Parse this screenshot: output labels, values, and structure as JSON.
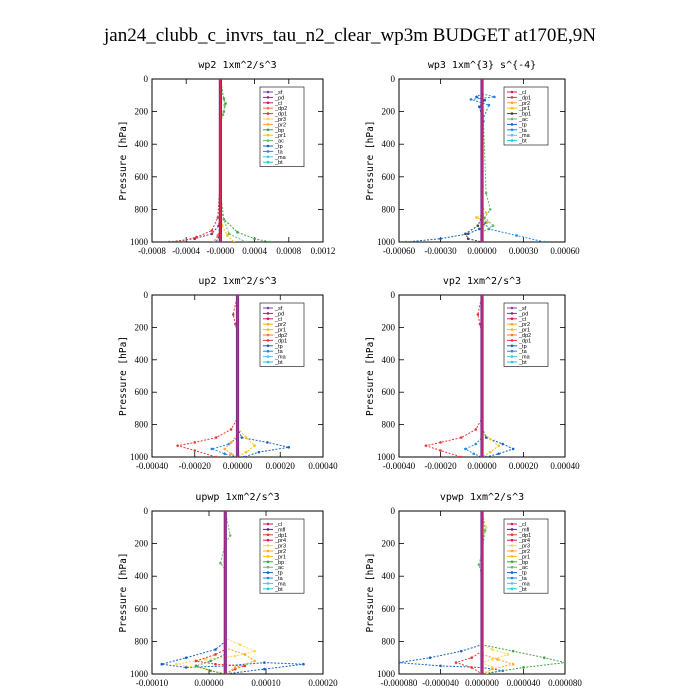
{
  "title": "jan24_clubb_c_invrs_tau_n2_clear_wp3m  BUDGET at170E,9N",
  "colors": {
    "sf": "#7f3fbf",
    "pd": "#9b2a6b",
    "cl": "#d81b60",
    "dp1": "#e53935",
    "dp2": "#ff7043",
    "pr1": "#ffc107",
    "pr2": "#ffa726",
    "pr3": "#ffd54f",
    "pr4": "#d81b60",
    "mfl": "#6a1b9a",
    "bp": "#43a047",
    "ac": "#66bb6a",
    "tp": "#1565c0",
    "ta": "#1e88e5",
    "ma": "#4fc3f7",
    "bt": "#26c6da"
  },
  "chart_data": [
    {
      "type": "line",
      "title": "wp2   1xm^2/s^3",
      "ylabel": "Pressure [hPa]",
      "ylim": [
        1000,
        0
      ],
      "xlim": [
        -0.0008,
        0.0012
      ],
      "xticks": [
        "-0.0008",
        "-0.0004",
        "-0.0000",
        "0.0004",
        "0.0008",
        "0.0012"
      ],
      "yticks": [
        "0",
        "200",
        "400",
        "600",
        "800",
        "1000"
      ],
      "legend": [
        "_sf",
        "_pd",
        "_cl",
        "_dp2",
        "_dp1",
        "_pr3",
        "_pr2",
        "_bp",
        "_pr1",
        "_ac",
        "_tp",
        "_ta",
        "_ma",
        "_bt"
      ],
      "series": [
        {
          "name": "_pd",
          "x": [
            0,
            0,
            0,
            -2e-05,
            -0.0001,
            -0.0003,
            -0.0006
          ],
          "y": [
            0,
            400,
            800,
            900,
            950,
            980,
            1000
          ]
        },
        {
          "name": "_dp1",
          "x": [
            0,
            0,
            -3e-05,
            -0.0001,
            -0.00028,
            -0.0005
          ],
          "y": [
            0,
            600,
            850,
            930,
            970,
            1000
          ]
        },
        {
          "name": "_bp",
          "x": [
            0,
            4e-05,
            6e-05,
            4e-05,
            0,
            0,
            4e-05,
            0.0002,
            0.0004,
            0.00058
          ],
          "y": [
            0,
            120,
            150,
            200,
            240,
            700,
            860,
            940,
            980,
            1000
          ]
        },
        {
          "name": "_ac",
          "x": [
            0,
            5e-05,
            3e-05,
            0,
            0,
            0.0001,
            0.0003
          ],
          "y": [
            0,
            160,
            220,
            260,
            800,
            950,
            1000
          ]
        },
        {
          "name": "_pr1",
          "x": [
            0,
            0,
            2e-05,
            8e-05,
            0.00016
          ],
          "y": [
            0,
            800,
            900,
            960,
            1000
          ]
        },
        {
          "name": "_tp",
          "x": [
            0,
            0,
            -2e-05,
            -5e-05
          ],
          "y": [
            0,
            900,
            970,
            1000
          ]
        },
        {
          "name": "_dp2",
          "x": [
            0,
            0,
            -3e-05,
            -8e-05
          ],
          "y": [
            0,
            900,
            960,
            1000
          ]
        }
      ]
    },
    {
      "type": "line",
      "title": "wp3   1xm^{3} s^{-4}",
      "ylabel": "Pressure [hPa]",
      "ylim": [
        1000,
        0
      ],
      "xlim": [
        -0.0006,
        0.0006
      ],
      "xticks": [
        "-0.00060",
        "-0.00030",
        "0.00000",
        "0.00030",
        "0.00060"
      ],
      "yticks": [
        "0",
        "200",
        "400",
        "600",
        "800",
        "1000"
      ],
      "legend": [
        "_cl",
        "_dp1",
        "_pr2",
        "_pr1",
        "_bp1",
        "_ac",
        "_tp",
        "_ta",
        "_ma",
        "_bt"
      ],
      "series": [
        {
          "name": "_tp",
          "x": [
            0,
            0,
            -4e-05,
            2e-05,
            -2e-05,
            1e-05,
            0,
            0,
            3e-05,
            -2e-05,
            -0.0001,
            -0.0003,
            -0.00055
          ],
          "y": [
            0,
            90,
            110,
            130,
            170,
            260,
            400,
            820,
            880,
            920,
            950,
            980,
            1000
          ]
        },
        {
          "name": "_ta",
          "x": [
            0,
            9e-05,
            -8e-05,
            5e-05,
            0,
            0,
            5e-05,
            0.00025,
            0.00045
          ],
          "y": [
            90,
            110,
            125,
            160,
            260,
            860,
            920,
            960,
            1000
          ]
        },
        {
          "name": "_pr1",
          "x": [
            0,
            0,
            3e-05,
            -4e-05,
            4e-05,
            0
          ],
          "y": [
            0,
            780,
            820,
            850,
            880,
            920
          ]
        },
        {
          "name": "_ac",
          "x": [
            0,
            3e-05,
            6e-05,
            2e-05,
            8e-05,
            0
          ],
          "y": [
            0,
            700,
            800,
            850,
            900,
            940
          ]
        },
        {
          "name": "_bp1",
          "x": [
            0,
            0,
            -3e-05,
            -0.00012,
            -0.0001,
            0
          ],
          "y": [
            0,
            840,
            900,
            950,
            980,
            1000
          ]
        }
      ]
    },
    {
      "type": "line",
      "title": "up2   1xm^2/s^3",
      "ylabel": "Pressure [hPa]",
      "ylim": [
        1000,
        0
      ],
      "xlim": [
        -0.0004,
        0.0004
      ],
      "xticks": [
        "-0.00040",
        "-0.00020",
        "0.00000",
        "0.00020",
        "0.00040"
      ],
      "yticks": [
        "0",
        "200",
        "400",
        "600",
        "800",
        "1000"
      ],
      "legend": [
        "_sf",
        "_pd",
        "_cl",
        "_pr2",
        "_pr1",
        "_dp2",
        "_dp1",
        "_tp",
        "_ta",
        "_ma",
        "_bt"
      ],
      "series": [
        {
          "name": "_dp1",
          "x": [
            0,
            -2e-05,
            -1e-05,
            0,
            0,
            -3e-05,
            -0.0001,
            -0.0002,
            -0.00028,
            -0.0002,
            -0.0001
          ],
          "y": [
            0,
            120,
            180,
            240,
            760,
            830,
            880,
            910,
            930,
            960,
            1000
          ]
        },
        {
          "name": "_tp",
          "x": [
            0,
            0,
            2e-05,
            0.00014,
            0.00024,
            0.0001,
            3e-05
          ],
          "y": [
            0,
            820,
            880,
            910,
            940,
            970,
            1000
          ]
        },
        {
          "name": "_ta",
          "x": [
            0,
            0,
            -4e-05,
            -0.00012,
            -6e-05,
            0
          ],
          "y": [
            0,
            880,
            920,
            950,
            980,
            1000
          ]
        },
        {
          "name": "_pr1",
          "x": [
            0,
            0,
            4e-05,
            8e-05,
            4e-05,
            0
          ],
          "y": [
            0,
            820,
            880,
            930,
            970,
            1000
          ]
        },
        {
          "name": "_pr2",
          "x": [
            0,
            0,
            -3e-05,
            -6e-05,
            -3e-05,
            0
          ],
          "y": [
            0,
            860,
            910,
            950,
            980,
            1000
          ]
        }
      ]
    },
    {
      "type": "line",
      "title": "vp2   1xm^2/s^3",
      "ylabel": "Pressure [hPa]",
      "ylim": [
        1000,
        0
      ],
      "xlim": [
        -0.0004,
        0.0004
      ],
      "xticks": [
        "-0.00040",
        "-0.00020",
        "0.00000",
        "0.00020",
        "0.00040"
      ],
      "yticks": [
        "0",
        "200",
        "400",
        "600",
        "800",
        "1000"
      ],
      "legend": [
        "_sf",
        "_pd",
        "_cl",
        "_pr2",
        "_pr1",
        "_dp2",
        "_dp1",
        "_tp",
        "_ta",
        "_ma",
        "_bt"
      ],
      "series": [
        {
          "name": "_dp1",
          "x": [
            0,
            -2e-05,
            -1e-05,
            0,
            0,
            -3e-05,
            -0.0001,
            -0.0002,
            -0.00027,
            -0.0002,
            -0.0001
          ],
          "y": [
            0,
            120,
            180,
            240,
            760,
            830,
            880,
            910,
            930,
            960,
            1000
          ]
        },
        {
          "name": "_tp",
          "x": [
            0,
            0,
            2e-05,
            0.0001,
            0.00015,
            8e-05,
            2e-05
          ],
          "y": [
            0,
            820,
            880,
            920,
            950,
            980,
            1000
          ]
        },
        {
          "name": "_ta",
          "x": [
            0,
            0,
            -3e-05,
            -8e-05,
            -4e-05,
            0
          ],
          "y": [
            0,
            880,
            920,
            950,
            980,
            1000
          ]
        },
        {
          "name": "_pr1",
          "x": [
            0,
            0,
            4e-05,
            8e-05,
            4e-05,
            0
          ],
          "y": [
            0,
            840,
            890,
            930,
            970,
            1000
          ]
        }
      ]
    },
    {
      "type": "line",
      "title": "upwp   1xm^2/s^3",
      "ylabel": "Pressure [hPa]",
      "ylim": [
        1000,
        0
      ],
      "xlim": [
        -0.00015,
        0.0002
      ],
      "xticks": [
        "-0.00010",
        "0.00000",
        "0.00010",
        "0.00020"
      ],
      "yticks": [
        "0",
        "200",
        "400",
        "600",
        "800",
        "1000"
      ],
      "legend": [
        "_cl",
        "_mfl",
        "_dp1",
        "_pr4",
        "_pr3",
        "_pr2",
        "_pr1",
        "_bp",
        "_ac",
        "_tp",
        "_ta",
        "_ma",
        "_bt"
      ],
      "series": [
        {
          "name": "_tp",
          "x": [
            0,
            0,
            -2e-05,
            -8e-05,
            -0.00013,
            -8e-05,
            0,
            8e-05,
            0.00016,
            8e-05,
            0
          ],
          "y": [
            0,
            800,
            850,
            900,
            940,
            960,
            950,
            930,
            940,
            970,
            1000
          ]
        },
        {
          "name": "_pr3",
          "x": [
            0,
            0,
            3e-05,
            6e-05,
            2e-05,
            -4e-05,
            -0.0001,
            -4e-05,
            0
          ],
          "y": [
            0,
            780,
            820,
            860,
            890,
            910,
            940,
            970,
            1000
          ]
        },
        {
          "name": "_dp1",
          "x": [
            0,
            0,
            -2e-05,
            -6e-05,
            -2e-05,
            4e-05,
            2e-05,
            0
          ],
          "y": [
            0,
            850,
            880,
            920,
            940,
            950,
            970,
            1000
          ]
        },
        {
          "name": "_pr2",
          "x": [
            0,
            0,
            4e-05,
            6e-05,
            2e-05,
            0
          ],
          "y": [
            0,
            840,
            880,
            920,
            960,
            1000
          ]
        },
        {
          "name": "_bp",
          "x": [
            0,
            0,
            -3e-05,
            -6e-05,
            -3e-05,
            0
          ],
          "y": [
            0,
            880,
            920,
            950,
            980,
            1000
          ]
        },
        {
          "name": "_ac",
          "x": [
            0,
            1e-05,
            0,
            -1e-05,
            0,
            0
          ],
          "y": [
            0,
            150,
            200,
            320,
            360,
            1000
          ]
        }
      ]
    },
    {
      "type": "line",
      "title": "vpwp   1xm^2/s^3",
      "ylabel": "Pressure [hPa]",
      "ylim": [
        1000,
        0
      ],
      "xlim": [
        -8e-05,
        8e-05
      ],
      "xticks": [
        "-0.000080",
        "-0.000040",
        "0.000000",
        "0.000040",
        "0.000080"
      ],
      "yticks": [
        "0",
        "200",
        "400",
        "600",
        "800",
        "1000"
      ],
      "legend": [
        "_cl",
        "_mfl",
        "_dp1",
        "_pr4",
        "_pr3",
        "_pr2",
        "_pr1",
        "_bp",
        "_ac",
        "_tp",
        "_ta",
        "_ma",
        "_bt"
      ],
      "series": [
        {
          "name": "_tp",
          "x": [
            0,
            0,
            -2e-05,
            -5e-05,
            -8e-05,
            -4e-05,
            0,
            2e-05,
            0
          ],
          "y": [
            0,
            820,
            860,
            900,
            930,
            950,
            960,
            980,
            1000
          ]
        },
        {
          "name": "_bp",
          "x": [
            0,
            0,
            3e-05,
            6e-05,
            8e-05,
            4e-05,
            0
          ],
          "y": [
            0,
            820,
            860,
            900,
            930,
            960,
            1000
          ]
        },
        {
          "name": "_pr3",
          "x": [
            0,
            4e-06,
            0,
            0,
            1e-05,
            2.5e-05,
            1e-05,
            0,
            1e-05,
            5e-06
          ],
          "y": [
            0,
            100,
            180,
            820,
            850,
            880,
            910,
            930,
            960,
            1000
          ]
        },
        {
          "name": "_dp1",
          "x": [
            0,
            0,
            -1e-05,
            -2.5e-05,
            -1e-05,
            0
          ],
          "y": [
            0,
            860,
            900,
            930,
            960,
            1000
          ]
        },
        {
          "name": "_pr2",
          "x": [
            0,
            0,
            1.5e-05,
            3e-05,
            1e-05,
            0
          ],
          "y": [
            0,
            880,
            910,
            940,
            970,
            1000
          ]
        },
        {
          "name": "_ac",
          "x": [
            0,
            3e-06,
            0,
            -3e-06,
            0
          ],
          "y": [
            0,
            120,
            250,
            330,
            400
          ]
        }
      ]
    }
  ]
}
